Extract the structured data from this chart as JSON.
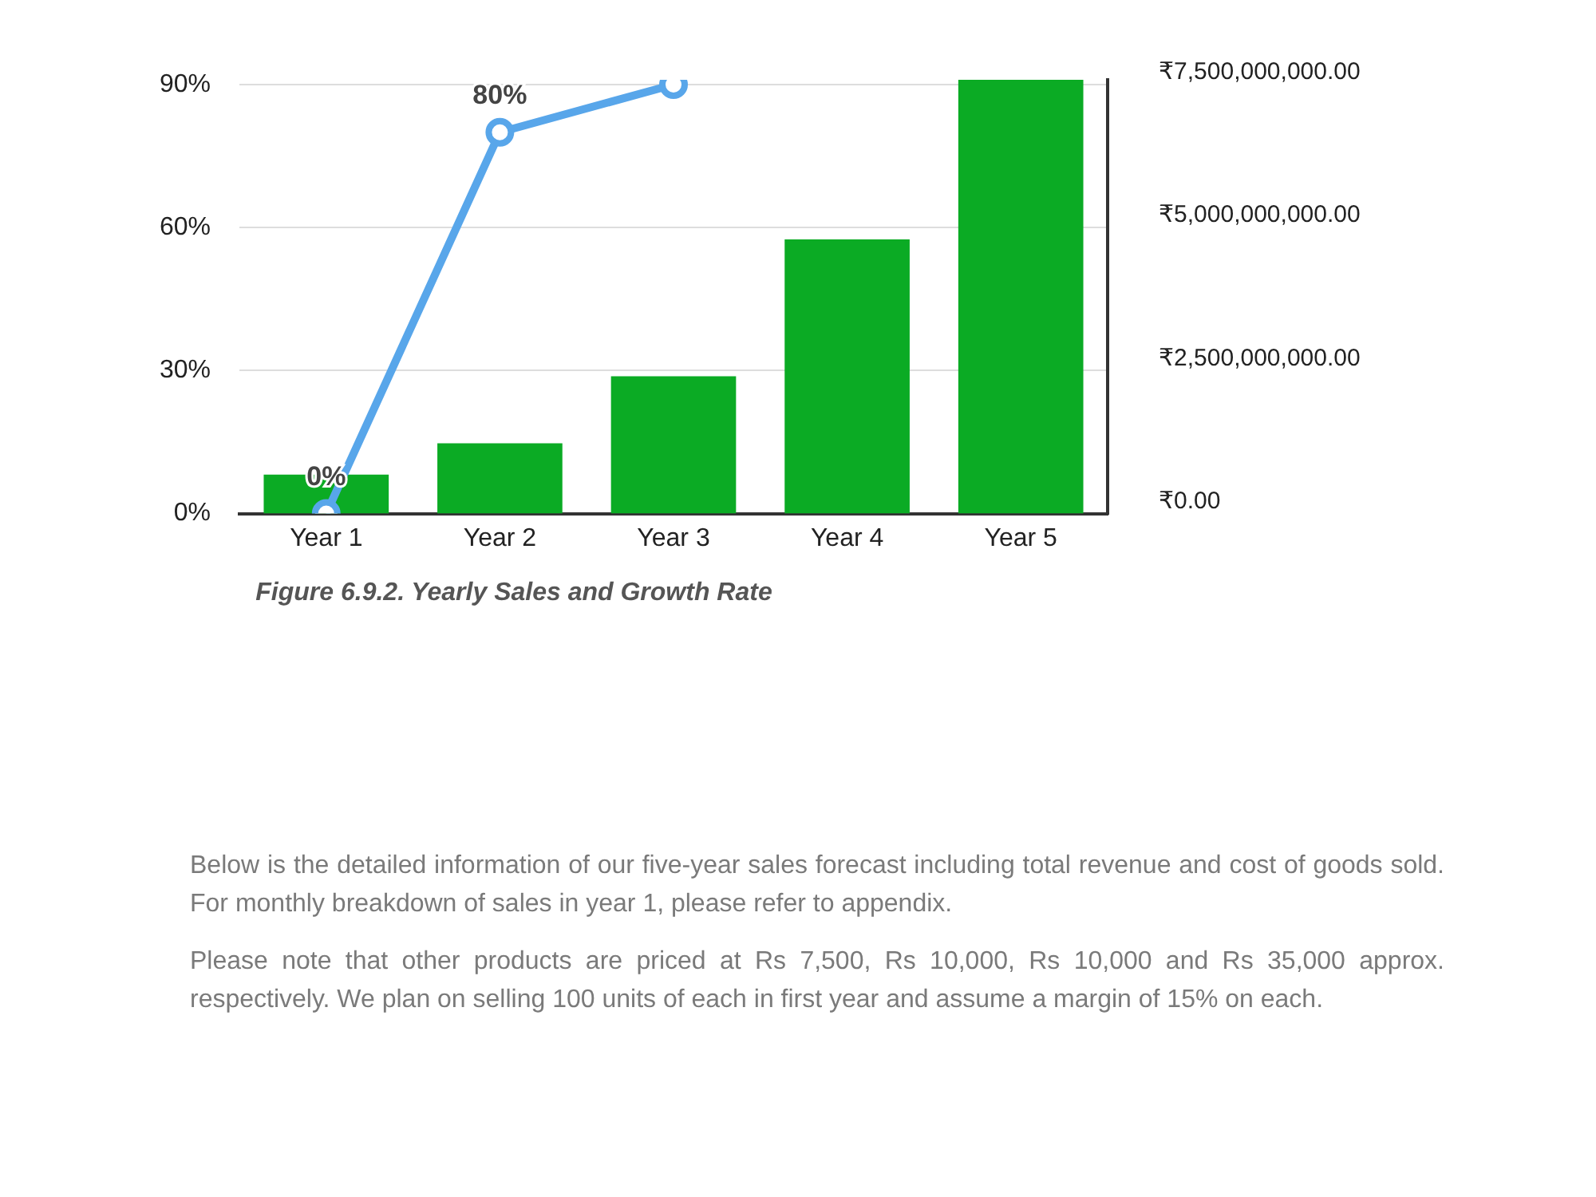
{
  "chart_data": {
    "type": "bar",
    "categories": [
      "Year 1",
      "Year 2",
      "Year 3",
      "Year 4",
      "Year 5"
    ],
    "series": [
      {
        "axis": "y2",
        "color": "#0bab24",
        "values": [
          680000000,
          1230000000,
          2400000000,
          4790000000,
          7580000000
        ]
      },
      {
        "type": "line",
        "axis": "y",
        "color": "#58a6ea",
        "values": [
          0,
          80,
          90,
          null,
          null
        ],
        "value_labels": [
          "0%",
          "80%",
          null,
          null,
          null
        ]
      }
    ],
    "ylim": [
      0,
      91
    ],
    "yticks": [
      {
        "value": 0,
        "label": "0%"
      },
      {
        "value": 30,
        "label": "30%"
      },
      {
        "value": 60,
        "label": "60%"
      },
      {
        "value": 90,
        "label": "90%"
      }
    ],
    "y2lim": [
      0,
      7580000000
    ],
    "y2ticks": [
      {
        "value": 0,
        "label": "₹0.00"
      },
      {
        "value": 2500000000,
        "label": "₹2,500,000,000.00"
      },
      {
        "value": 5000000000,
        "label": "₹5,000,000,000.00"
      },
      {
        "value": 7500000000,
        "label": "₹7,500,000,000.00"
      }
    ],
    "grid": "y",
    "marker": "circle",
    "line_style": "solid",
    "annotations": [
      "Figure 6.9.2. Yearly Sales and Growth Rate",
      "Below is the detailed information of our five-year sales forecast including total revenue and cost of goods sold. For monthly breakdown of sales in year 1, please refer to appendix.",
      "Please note that other products are priced at Rs 7,500, Rs 10,000, Rs 10,000 and Rs 35,000 approx. respectively. We plan on selling 100 units of each in first year and assume a margin of 15% on each."
    ]
  }
}
